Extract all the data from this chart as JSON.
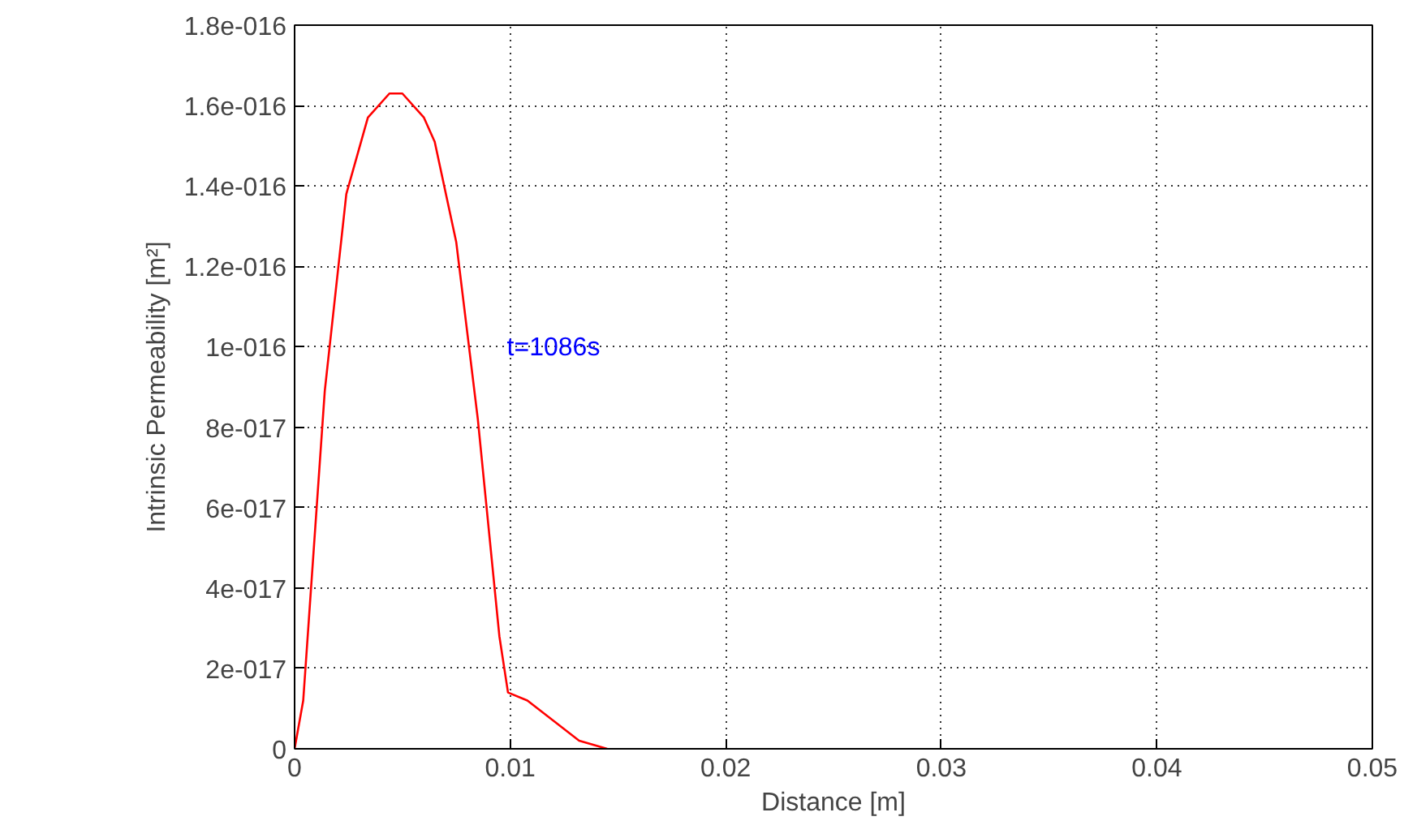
{
  "chart_data": {
    "type": "line",
    "xlabel": "Distance [m]",
    "ylabel": "Intrinsic Permeability [m²]",
    "x": [
      0,
      0.0004,
      0.0014,
      0.0024,
      0.0034,
      0.0044,
      0.005,
      0.006,
      0.0065,
      0.0075,
      0.0085,
      0.0095,
      0.0099,
      0.0108,
      0.012,
      0.0132,
      0.0145
    ],
    "series": [
      {
        "color": "#ff0000",
        "values": [
          0,
          1.2e-17,
          8.9e-17,
          1.38e-16,
          1.57e-16,
          1.63e-16,
          1.63e-16,
          1.57e-16,
          1.51e-16,
          1.26e-16,
          8.2e-17,
          2.8e-17,
          1.4e-17,
          1.2e-17,
          7e-18,
          2e-18,
          0
        ]
      }
    ],
    "xlim": [
      0,
      0.05
    ],
    "xticks": [
      0,
      0.01,
      0.02,
      0.03,
      0.04,
      0.05
    ],
    "ylim": [
      0,
      1.8e-16
    ],
    "yticks": [
      0,
      {
        "value": 2e-17,
        "label": "2e-017"
      },
      {
        "value": 4e-17,
        "label": "4e-017"
      },
      {
        "value": 6e-17,
        "label": "6e-017"
      },
      {
        "value": 8e-17,
        "label": "8e-017"
      },
      {
        "value": 1e-16,
        "label": "1e-016"
      },
      {
        "value": 1.2e-16,
        "label": "1.2e-016"
      },
      {
        "value": 1.4e-16,
        "label": "1.4e-016"
      },
      {
        "value": 1.6e-16,
        "label": "1.6e-016"
      },
      {
        "value": 1.8e-16,
        "label": "1.8e-016"
      }
    ],
    "annotations": [
      "t=1086s"
    ],
    "grid": true,
    "line_style": "solid"
  }
}
